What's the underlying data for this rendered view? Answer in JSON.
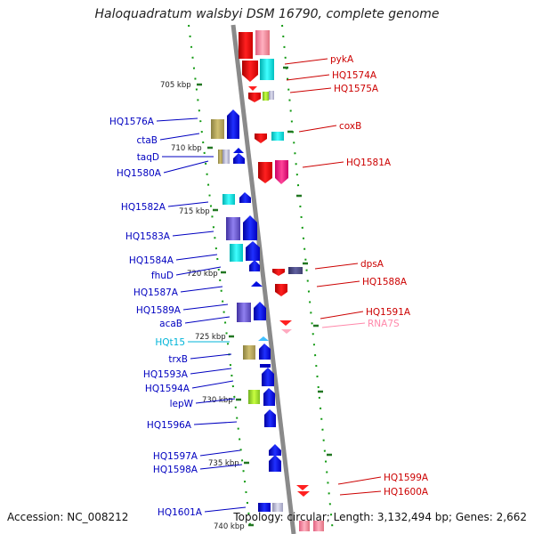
{
  "title": "Haloquadratum walsbyi DSM 16790, complete genome",
  "accession": "Accession: NC_008212",
  "summary": "Topology: circular; Length: 3,132,494 bp; Genes: 2,662",
  "colors": {
    "forward_label": "#0000c0",
    "reverse_label": "#cc0000",
    "trna_label": "#00b4d8",
    "rna_label": "#ff88aa",
    "backbone": "#888888",
    "tick": "#339933"
  },
  "ruler": [
    {
      "label": "705 kbp"
    },
    {
      "label": "710 kbp"
    },
    {
      "label": "715 kbp"
    },
    {
      "label": "720 kbp"
    },
    {
      "label": "725 kbp"
    },
    {
      "label": "730 kbp"
    },
    {
      "label": "735 kbp"
    },
    {
      "label": "740 kbp"
    }
  ],
  "left_labels": [
    {
      "text": "HQ1576A",
      "kind": "forward"
    },
    {
      "text": "ctaB",
      "kind": "forward"
    },
    {
      "text": "taqD",
      "kind": "forward"
    },
    {
      "text": "HQ1580A",
      "kind": "forward"
    },
    {
      "text": "HQ1582A",
      "kind": "forward"
    },
    {
      "text": "HQ1583A",
      "kind": "forward"
    },
    {
      "text": "HQ1584A",
      "kind": "forward"
    },
    {
      "text": "fhuD",
      "kind": "forward"
    },
    {
      "text": "HQ1587A",
      "kind": "forward"
    },
    {
      "text": "HQ1589A",
      "kind": "forward"
    },
    {
      "text": "acaB",
      "kind": "forward"
    },
    {
      "text": "HQt15",
      "kind": "trna"
    },
    {
      "text": "trxB",
      "kind": "forward"
    },
    {
      "text": "HQ1593A",
      "kind": "forward"
    },
    {
      "text": "HQ1594A",
      "kind": "forward"
    },
    {
      "text": "lepW",
      "kind": "forward"
    },
    {
      "text": "HQ1596A",
      "kind": "forward"
    },
    {
      "text": "HQ1597A",
      "kind": "forward"
    },
    {
      "text": "HQ1598A",
      "kind": "forward"
    },
    {
      "text": "HQ1601A",
      "kind": "forward"
    }
  ],
  "right_labels": [
    {
      "text": "pykA",
      "kind": "reverse"
    },
    {
      "text": "HQ1574A",
      "kind": "reverse"
    },
    {
      "text": "HQ1575A",
      "kind": "reverse"
    },
    {
      "text": "coxB",
      "kind": "reverse"
    },
    {
      "text": "HQ1581A",
      "kind": "reverse"
    },
    {
      "text": "dpsA",
      "kind": "reverse"
    },
    {
      "text": "HQ1588A",
      "kind": "reverse"
    },
    {
      "text": "HQ1591A",
      "kind": "reverse"
    },
    {
      "text": "RNA7S",
      "kind": "rna"
    },
    {
      "text": "HQ1599A",
      "kind": "reverse"
    },
    {
      "text": "HQ1600A",
      "kind": "reverse"
    }
  ]
}
